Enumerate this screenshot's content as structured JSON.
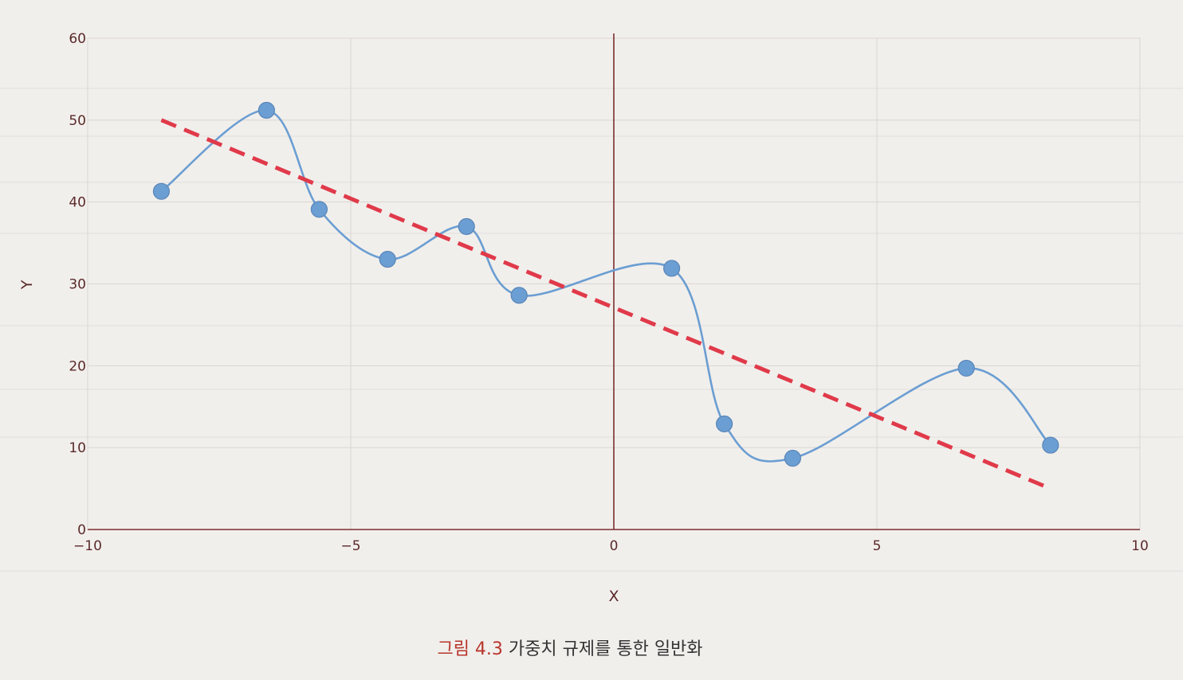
{
  "chart_data": {
    "type": "scatter",
    "title": "",
    "xlabel": "X",
    "ylabel": "Y",
    "xlim": [
      -10,
      10
    ],
    "ylim": [
      0,
      60
    ],
    "x_ticks": [
      -10,
      -5,
      0,
      5,
      10
    ],
    "y_ticks": [
      0,
      10,
      20,
      30,
      40,
      50,
      60
    ],
    "x_tick_labels": [
      "−10",
      "−5",
      "0",
      "5",
      "10"
    ],
    "y_tick_labels": [
      "0",
      "10",
      "20",
      "30",
      "40",
      "50",
      "60"
    ],
    "grid": true,
    "colors": {
      "points": "#6b9ed2",
      "curve": "#6b9ed2",
      "fit_line": "#e03a4a",
      "axes": "#7a2e2e",
      "grid": "#d9d6d2"
    },
    "series": [
      {
        "style": "points-with-smooth-curve",
        "x": [
          -8.6,
          -6.6,
          -5.6,
          -4.3,
          -2.8,
          -1.8,
          1.1,
          2.1,
          3.4,
          6.7,
          8.3
        ],
        "y": [
          41.3,
          51.2,
          39.1,
          33.0,
          37.0,
          28.6,
          31.9,
          12.9,
          8.7,
          19.7,
          10.3
        ]
      },
      {
        "style": "dashed-line",
        "x": [
          -8.6,
          8.3
        ],
        "y": [
          50.0,
          5.0
        ]
      }
    ]
  },
  "caption": {
    "figure_number": "그림 4.3",
    "text": "가중치 규제를 통한 일반화"
  }
}
